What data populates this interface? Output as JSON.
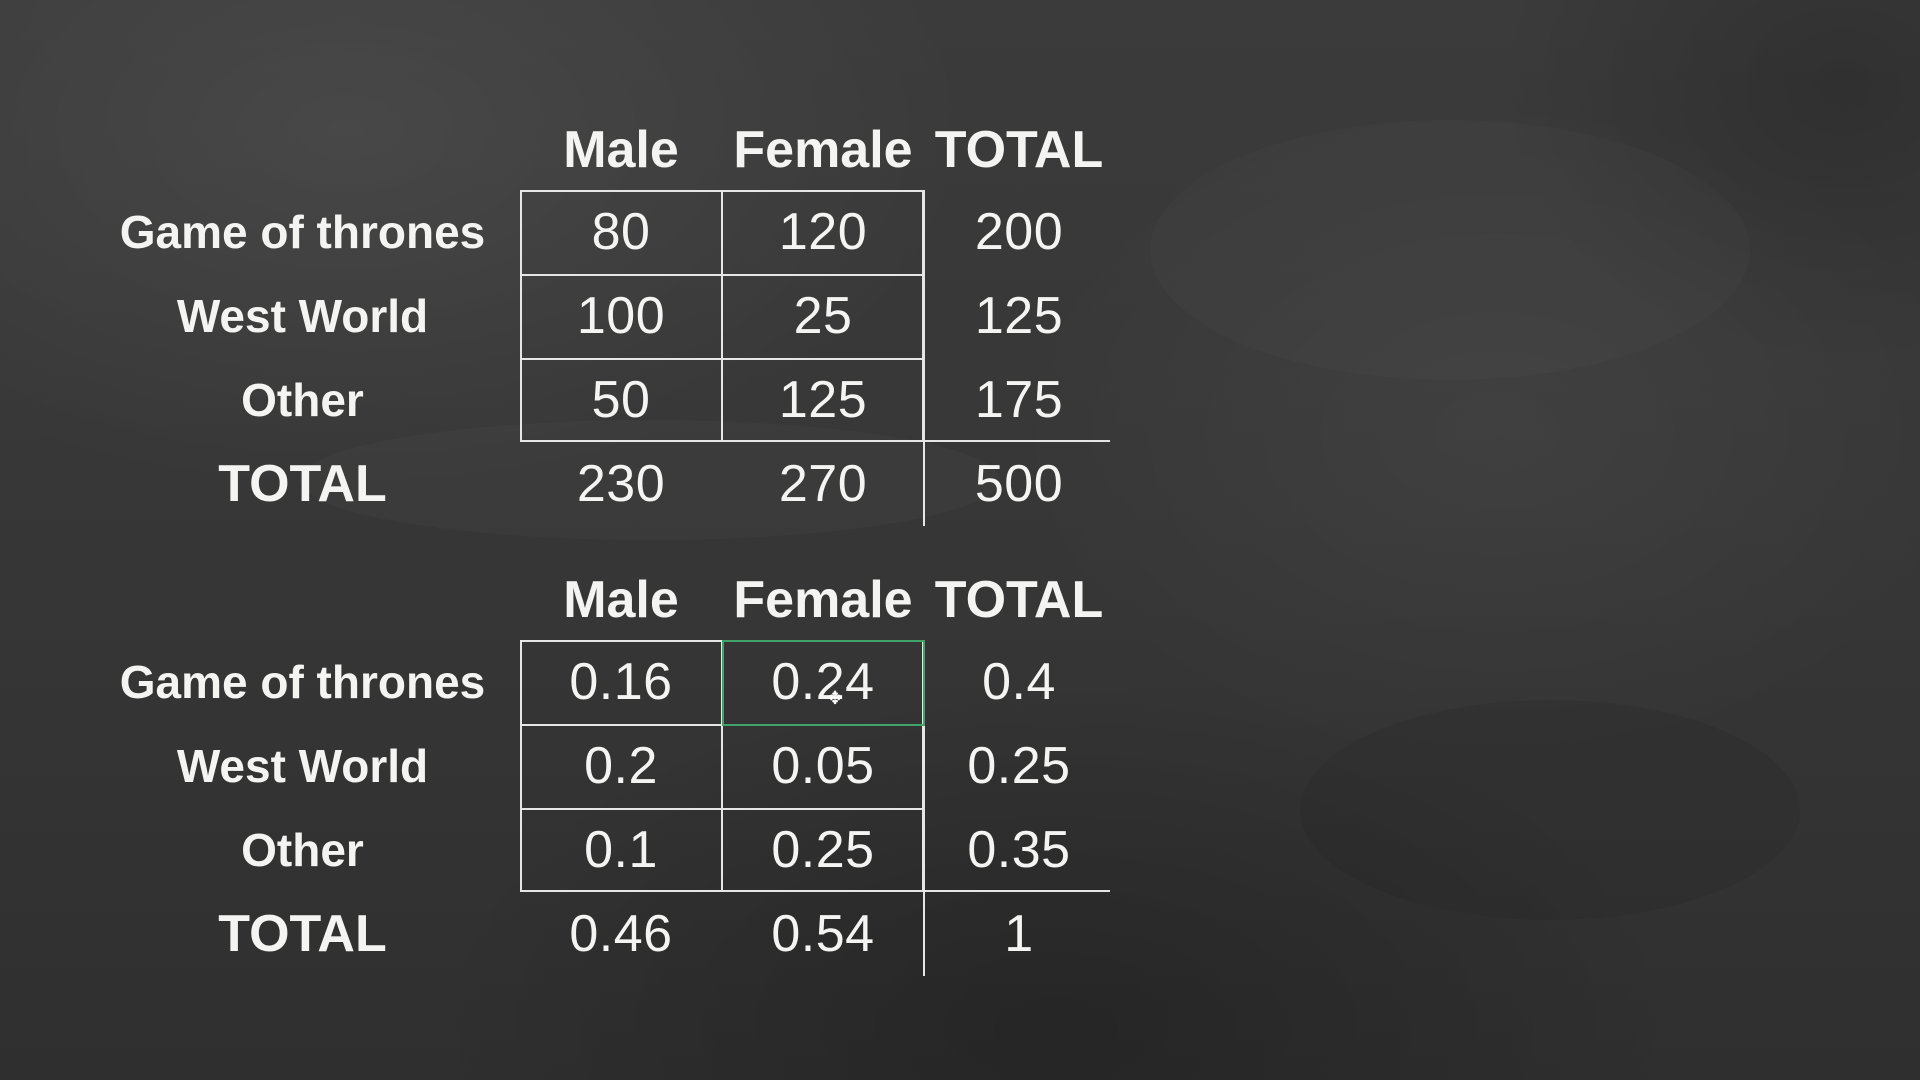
{
  "table1": {
    "headers": [
      "Male",
      "Female",
      "TOTAL"
    ],
    "rows": [
      {
        "label": "Game of thrones",
        "values": [
          "80",
          "120",
          "200"
        ]
      },
      {
        "label": "West World",
        "values": [
          "100",
          "25",
          "125"
        ]
      },
      {
        "label": "Other",
        "values": [
          "50",
          "125",
          "175"
        ]
      },
      {
        "label": "TOTAL",
        "values": [
          "230",
          "270",
          "500"
        ]
      }
    ]
  },
  "table2": {
    "headers": [
      "Male",
      "Female",
      "TOTAL"
    ],
    "rows": [
      {
        "label": "Game of thrones",
        "values": [
          "0.16",
          "0.24",
          "0.4"
        ]
      },
      {
        "label": "West World",
        "values": [
          "0.2",
          "0.05",
          "0.25"
        ]
      },
      {
        "label": "Other",
        "values": [
          "0.1",
          "0.25",
          "0.35"
        ]
      },
      {
        "label": "TOTAL",
        "values": [
          "0.46",
          "0.54",
          "1"
        ]
      }
    ],
    "selected_cell": {
      "row": 0,
      "col": 1
    }
  },
  "colors": {
    "board": "#3a3a3a",
    "chalk": "#f4f4f2",
    "grid_line": "#e6e6e6",
    "selection": "#3fa36a"
  }
}
